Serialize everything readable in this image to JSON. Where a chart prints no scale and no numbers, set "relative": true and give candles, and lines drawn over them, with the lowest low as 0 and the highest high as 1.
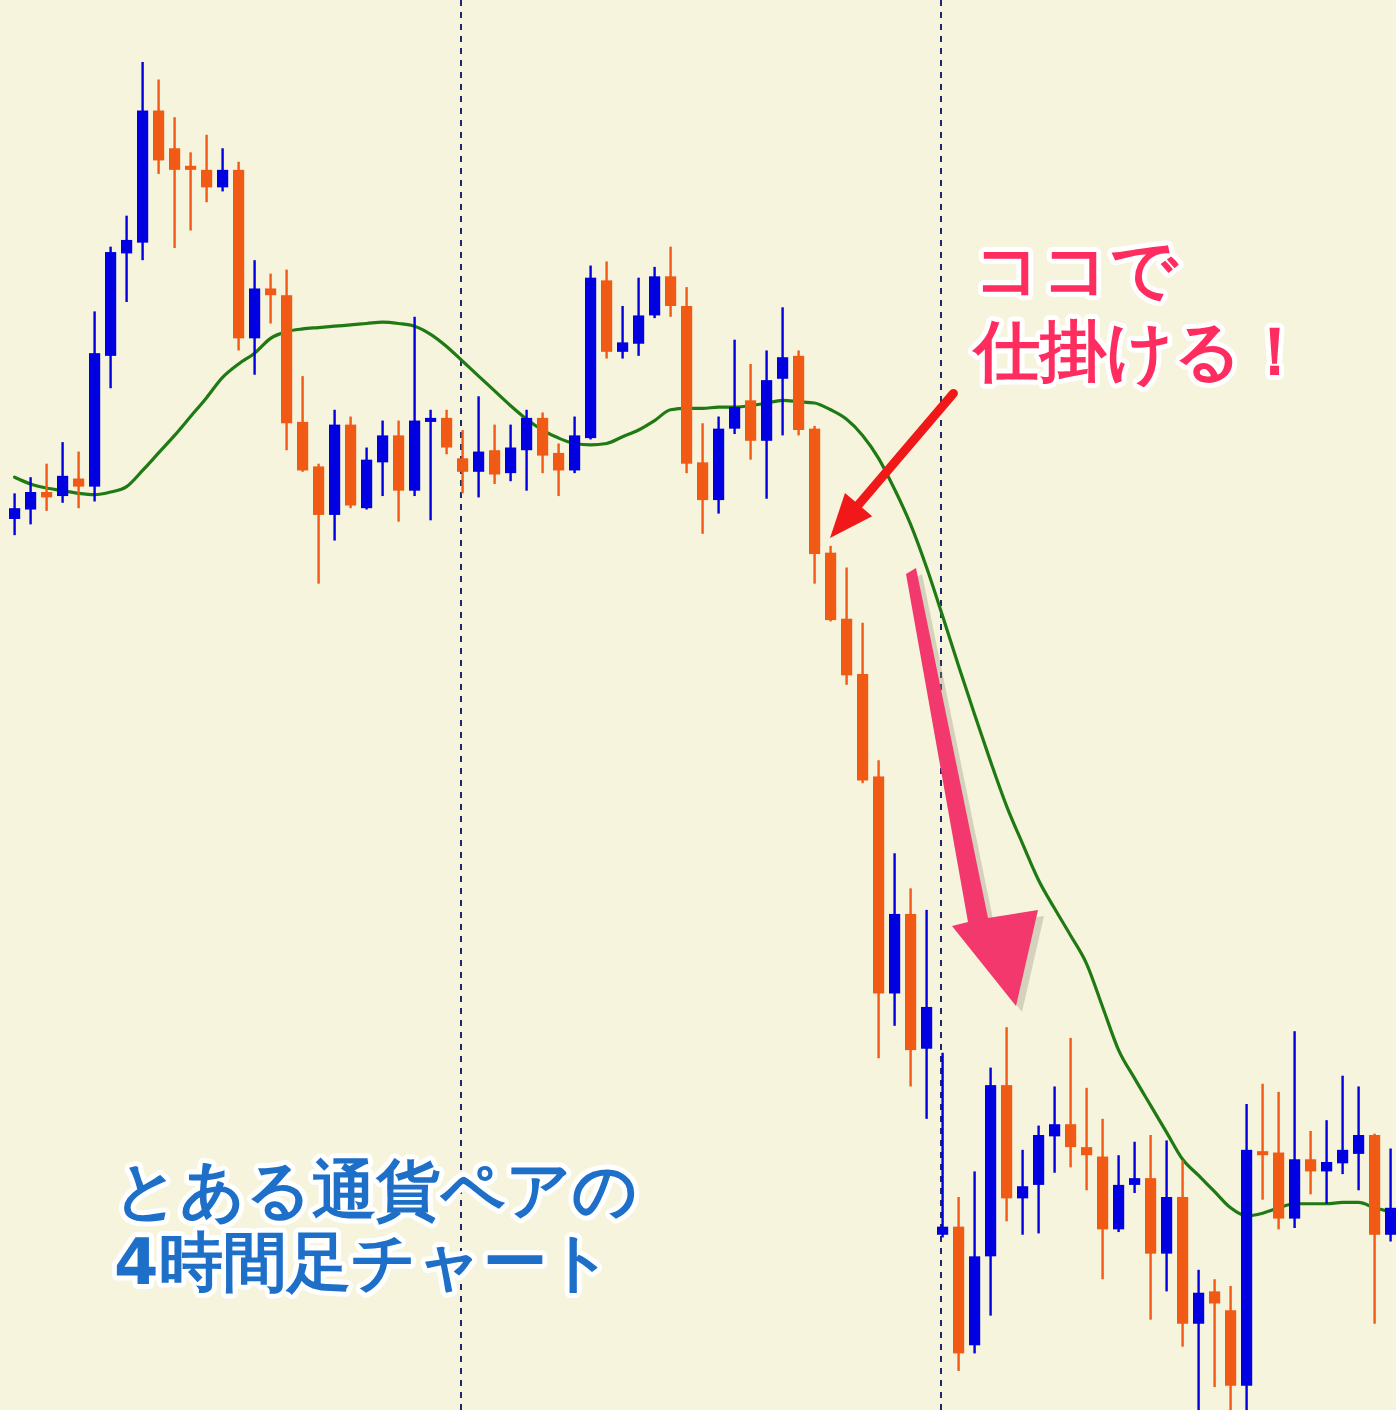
{
  "chart_data": {
    "type": "candlestick",
    "relative": true,
    "tick_labels": false,
    "categories": [
      null,
      null,
      null,
      null,
      null,
      null,
      null,
      null,
      null,
      null,
      null,
      null,
      null,
      null,
      null,
      null,
      null,
      null,
      null,
      null,
      null,
      null,
      null,
      null,
      null,
      null,
      null,
      null,
      null,
      null,
      null,
      null,
      null,
      null,
      null,
      null,
      null,
      null,
      null,
      null,
      null,
      null,
      null,
      null,
      null,
      null,
      null,
      null,
      null,
      null,
      null,
      null,
      null,
      null,
      null,
      null,
      null,
      null,
      null,
      null,
      null,
      null,
      null,
      null,
      null,
      null,
      null,
      null,
      null,
      null,
      null,
      null,
      null,
      null,
      null,
      null,
      null,
      null,
      null,
      null,
      null,
      null,
      null,
      null,
      null,
      null,
      null
    ],
    "ohlc": [
      [
        0.661,
        0.68,
        0.649,
        0.669
      ],
      [
        0.668,
        0.692,
        0.657,
        0.681
      ],
      [
        0.681,
        0.702,
        0.667,
        0.677
      ],
      [
        0.678,
        0.718,
        0.673,
        0.693
      ],
      [
        0.691,
        0.711,
        0.669,
        0.685
      ],
      [
        0.685,
        0.815,
        0.674,
        0.784
      ],
      [
        0.782,
        0.863,
        0.758,
        0.859
      ],
      [
        0.858,
        0.886,
        0.822,
        0.868
      ],
      [
        0.866,
        1.0,
        0.853,
        0.964
      ],
      [
        0.964,
        0.987,
        0.917,
        0.927
      ],
      [
        0.936,
        0.959,
        0.862,
        0.92
      ],
      [
        0.923,
        0.933,
        0.875,
        0.92
      ],
      [
        0.92,
        0.946,
        0.896,
        0.907
      ],
      [
        0.907,
        0.936,
        0.904,
        0.92
      ],
      [
        0.92,
        0.926,
        0.786,
        0.795
      ],
      [
        0.795,
        0.853,
        0.768,
        0.832
      ],
      [
        0.832,
        0.843,
        0.806,
        0.827
      ],
      [
        0.827,
        0.846,
        0.712,
        0.732
      ],
      [
        0.733,
        0.767,
        0.696,
        0.697
      ],
      [
        0.7,
        0.702,
        0.613,
        0.664
      ],
      [
        0.664,
        0.742,
        0.645,
        0.731
      ],
      [
        0.731,
        0.737,
        0.669,
        0.671
      ],
      [
        0.669,
        0.714,
        0.668,
        0.705
      ],
      [
        0.703,
        0.734,
        0.678,
        0.723
      ],
      [
        0.723,
        0.734,
        0.659,
        0.682
      ],
      [
        0.682,
        0.811,
        0.678,
        0.734
      ],
      [
        0.733,
        0.742,
        0.66,
        0.736
      ],
      [
        0.736,
        0.742,
        0.709,
        0.714
      ],
      [
        0.706,
        0.727,
        0.68,
        0.696
      ],
      [
        0.696,
        0.752,
        0.677,
        0.711
      ],
      [
        0.712,
        0.731,
        0.687,
        0.694
      ],
      [
        0.695,
        0.731,
        0.689,
        0.714
      ],
      [
        0.712,
        0.742,
        0.682,
        0.736
      ],
      [
        0.736,
        0.74,
        0.695,
        0.708
      ],
      [
        0.71,
        0.717,
        0.678,
        0.697
      ],
      [
        0.697,
        0.737,
        0.695,
        0.723
      ],
      [
        0.721,
        0.849,
        0.72,
        0.84
      ],
      [
        0.838,
        0.852,
        0.78,
        0.785
      ],
      [
        0.785,
        0.819,
        0.78,
        0.792
      ],
      [
        0.791,
        0.84,
        0.782,
        0.812
      ],
      [
        0.812,
        0.848,
        0.81,
        0.841
      ],
      [
        0.841,
        0.863,
        0.811,
        0.819
      ],
      [
        0.819,
        0.833,
        0.695,
        0.702
      ],
      [
        0.703,
        0.732,
        0.65,
        0.675
      ],
      [
        0.675,
        0.737,
        0.665,
        0.728
      ],
      [
        0.728,
        0.794,
        0.724,
        0.744
      ],
      [
        0.749,
        0.776,
        0.705,
        0.719
      ],
      [
        0.719,
        0.786,
        0.676,
        0.764
      ],
      [
        0.765,
        0.818,
        0.723,
        0.781
      ],
      [
        0.782,
        0.786,
        0.723,
        0.727
      ],
      [
        0.728,
        0.73,
        0.613,
        0.635
      ],
      [
        0.636,
        0.641,
        0.585,
        0.586
      ],
      [
        0.587,
        0.625,
        0.538,
        0.545
      ],
      [
        0.546,
        0.584,
        0.465,
        0.467
      ],
      [
        0.47,
        0.482,
        0.261,
        0.309
      ],
      [
        0.309,
        0.413,
        0.285,
        0.368
      ],
      [
        0.368,
        0.387,
        0.24,
        0.267
      ],
      [
        0.268,
        0.371,
        0.216,
        0.299
      ],
      [
        0.13,
        0.265,
        0.128,
        0.136
      ],
      [
        0.136,
        0.158,
        0.029,
        0.042
      ],
      [
        0.048,
        0.177,
        0.042,
        0.114
      ],
      [
        0.114,
        0.254,
        0.07,
        0.241
      ],
      [
        0.241,
        0.284,
        0.14,
        0.157
      ],
      [
        0.157,
        0.193,
        0.13,
        0.166
      ],
      [
        0.167,
        0.211,
        0.131,
        0.204
      ],
      [
        0.203,
        0.24,
        0.176,
        0.212
      ],
      [
        0.212,
        0.276,
        0.18,
        0.195
      ],
      [
        0.195,
        0.239,
        0.163,
        0.189
      ],
      [
        0.188,
        0.216,
        0.097,
        0.134
      ],
      [
        0.134,
        0.189,
        0.132,
        0.167
      ],
      [
        0.167,
        0.199,
        0.161,
        0.172
      ],
      [
        0.172,
        0.204,
        0.067,
        0.116
      ],
      [
        0.116,
        0.2,
        0.088,
        0.158
      ],
      [
        0.158,
        0.185,
        0.047,
        0.064
      ],
      [
        0.064,
        0.104,
        0,
        0.087
      ],
      [
        0.088,
        0.097,
        0.017,
        0.079
      ],
      [
        0.074,
        0.092,
        0,
        0.018
      ],
      [
        0.018,
        0.227,
        0,
        0.193
      ],
      [
        0.192,
        0.242,
        0.156,
        0.189
      ],
      [
        0.191,
        0.236,
        0.134,
        0.142
      ],
      [
        0.142,
        0.281,
        0.135,
        0.186
      ],
      [
        0.186,
        0.207,
        0.16,
        0.177
      ],
      [
        0.177,
        0.215,
        0.153,
        0.184
      ],
      [
        0.183,
        0.248,
        0.175,
        0.193
      ],
      [
        0.19,
        0.24,
        0.163,
        0.204
      ],
      [
        0.204,
        0.205,
        0.064,
        0.13
      ],
      [
        0.13,
        0.194,
        0.125,
        0.15
      ]
    ],
    "colors": [
      "#0000e0",
      "#0000e0",
      "#f05a14",
      "#0000e0",
      "#f05a14",
      "#0000e0",
      "#0000e0",
      "#0000e0",
      "#0000e0",
      "#f05a14",
      "#f05a14",
      "#f05a14",
      "#f05a14",
      "#0000e0",
      "#f05a14",
      "#0000e0",
      "#f05a14",
      "#f05a14",
      "#f05a14",
      "#f05a14",
      "#0000e0",
      "#f05a14",
      "#0000e0",
      "#0000e0",
      "#f05a14",
      "#0000e0",
      "#0000e0",
      "#f05a14",
      "#f05a14",
      "#0000e0",
      "#f05a14",
      "#0000e0",
      "#0000e0",
      "#f05a14",
      "#f05a14",
      "#0000e0",
      "#0000e0",
      "#f05a14",
      "#0000e0",
      "#0000e0",
      "#0000e0",
      "#f05a14",
      "#f05a14",
      "#f05a14",
      "#0000e0",
      "#0000e0",
      "#f05a14",
      "#0000e0",
      "#0000e0",
      "#f05a14",
      "#f05a14",
      "#f05a14",
      "#f05a14",
      "#f05a14",
      "#f05a14",
      "#0000e0",
      "#f05a14",
      "#0000e0",
      "#0000e0",
      "#f05a14",
      "#0000e0",
      "#0000e0",
      "#f05a14",
      "#0000e0",
      "#0000e0",
      "#0000e0",
      "#f05a14",
      "#f05a14",
      "#f05a14",
      "#0000e0",
      "#0000e0",
      "#f05a14",
      "#0000e0",
      "#f05a14",
      "#0000e0",
      "#f05a14",
      "#f05a14",
      "#0000e0",
      "#f05a14",
      "#f05a14",
      "#0000e0",
      "#f05a14",
      "#0000e0",
      "#0000e0",
      "#0000e0",
      "#f05a14",
      "#0000e0"
    ],
    "series": [
      {
        "type": "line",
        "color": "#1f7a14",
        "values": [
          0.692,
          0.687,
          0.684,
          0.682,
          0.68,
          0.679,
          0.681,
          0.685,
          0.697,
          0.71,
          0.723,
          0.737,
          0.751,
          0.766,
          0.776,
          0.784,
          0.795,
          0.8,
          0.802,
          0.803,
          0.804,
          0.805,
          0.806,
          0.807,
          0.806,
          0.804,
          0.798,
          0.789,
          0.778,
          0.767,
          0.756,
          0.745,
          0.735,
          0.727,
          0.721,
          0.717,
          0.716,
          0.717,
          0.722,
          0.727,
          0.734,
          0.742,
          0.743,
          0.743,
          0.744,
          0.744,
          0.745,
          0.747,
          0.749,
          0.748,
          0.747,
          0.742,
          0.735,
          0.723,
          0.706,
          0.683,
          0.657,
          0.625,
          0.589,
          0.552,
          0.516,
          0.481,
          0.448,
          0.42,
          0.393,
          0.372,
          0.352,
          0.331,
          0.299,
          0.267,
          0.246,
          0.226,
          0.206,
          0.186,
          0.174,
          0.162,
          0.15,
          0.144,
          0.146,
          0.15,
          0.153,
          0.153,
          0.153,
          0.154,
          0.154,
          0.15,
          0.147
        ]
      }
    ],
    "annotations": [
      "ココで",
      "仕掛ける！",
      "とある通貨ペアの",
      "4時間足チャート"
    ]
  }
}
